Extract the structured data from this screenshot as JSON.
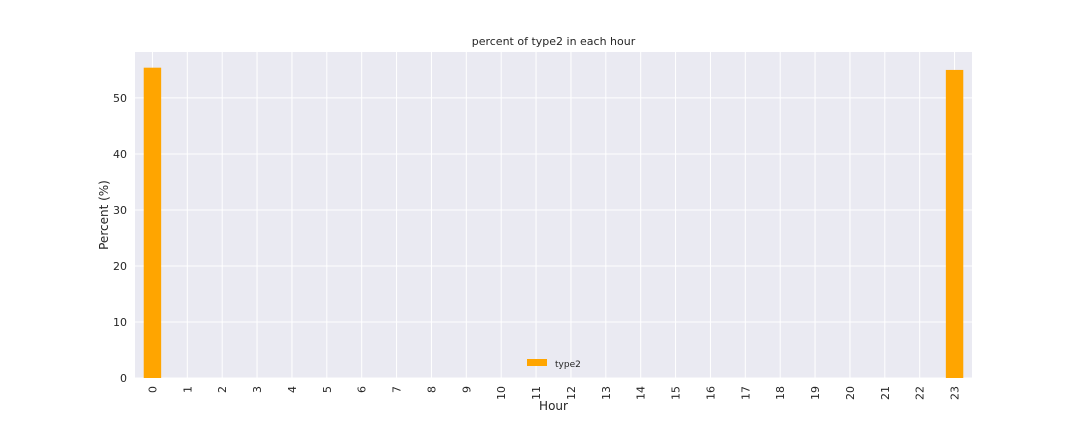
{
  "chart_data": {
    "type": "bar",
    "title": "percent of type2 in each hour",
    "xlabel": "Hour",
    "ylabel": "Percent (%)",
    "categories": [
      "0",
      "1",
      "2",
      "3",
      "4",
      "5",
      "6",
      "7",
      "8",
      "9",
      "10",
      "11",
      "12",
      "13",
      "14",
      "15",
      "16",
      "17",
      "18",
      "19",
      "20",
      "21",
      "22",
      "23"
    ],
    "series": [
      {
        "name": "type2",
        "color": "#ffa500",
        "values": [
          55.4,
          0,
          0,
          0,
          0,
          0,
          0,
          0,
          0,
          0,
          0,
          0,
          0,
          0,
          0,
          0,
          0,
          0,
          0,
          0,
          0,
          0,
          0,
          55.0
        ]
      }
    ],
    "ylim": [
      0,
      58.2
    ],
    "yticks": [
      0,
      10,
      20,
      30,
      40,
      50
    ],
    "grid": true,
    "legend_position": "bottom-center",
    "background": "#eaeaf2",
    "grid_color": "#ffffff"
  }
}
